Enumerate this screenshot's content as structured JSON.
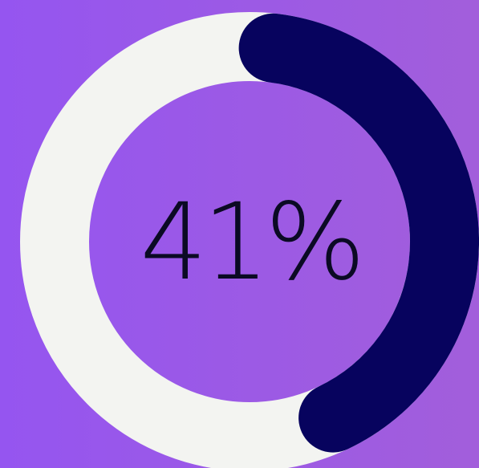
{
  "progress": {
    "value": 0.41,
    "label": "41%"
  },
  "colors": {
    "background_start": "#9555f0",
    "background_end": "#a25edb",
    "track": "#f3f4f1",
    "fill": "#07035e",
    "text": "#0b0a24"
  }
}
